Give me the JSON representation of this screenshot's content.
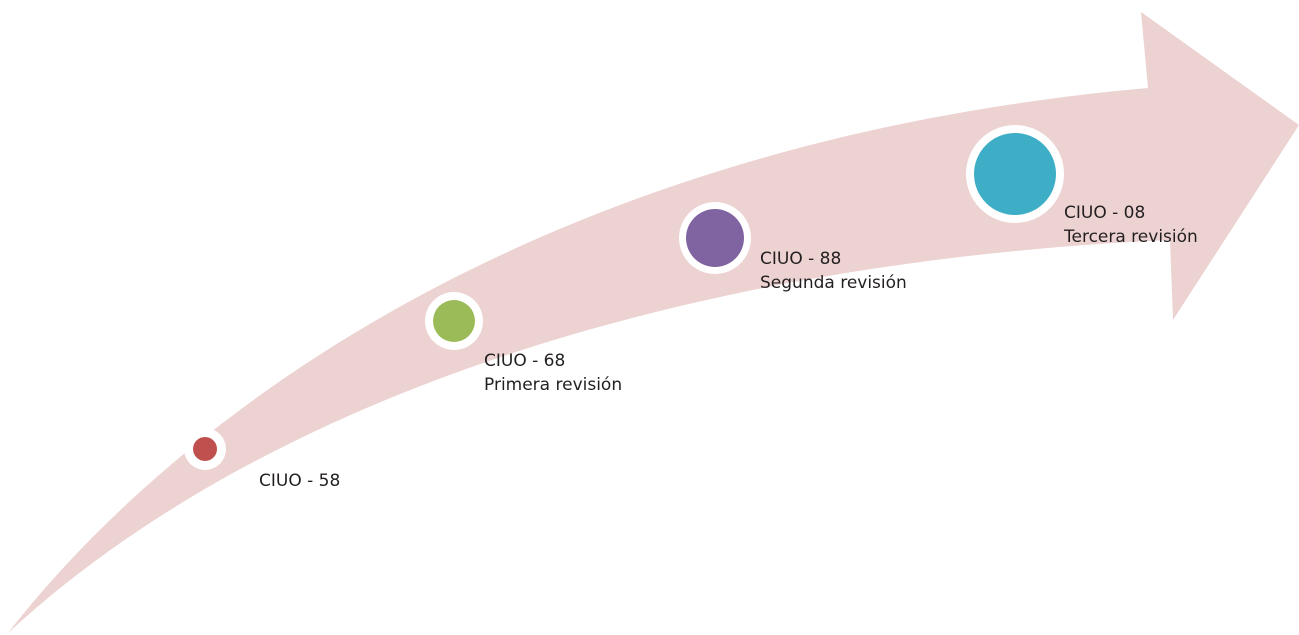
{
  "diagram": {
    "type": "timeline",
    "arrow_color": "#ecd2d1",
    "node_ring_color": "#ffffff",
    "milestones": [
      {
        "code": "CIUO - 58",
        "subtitle": "",
        "color": "#c0504d"
      },
      {
        "code": "CIUO - 68",
        "subtitle": "Primera revisión",
        "color": "#9bbb59"
      },
      {
        "code": "CIUO - 88",
        "subtitle": "Segunda revisión",
        "color": "#8064a2"
      },
      {
        "code": "CIUO - 08",
        "subtitle": "Tercera revisión",
        "color": "#3eaec6"
      }
    ]
  }
}
